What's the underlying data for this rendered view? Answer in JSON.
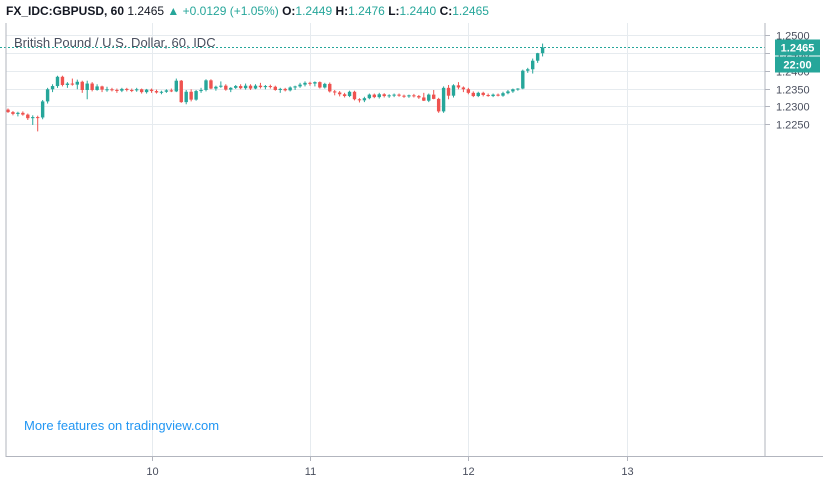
{
  "header": {
    "symbol": "FX_IDC:GBPUSD, 60",
    "last": "1.2465",
    "arrow": "▲",
    "change": "+0.0129 (+1.05%)",
    "o_label": "O:",
    "o": "1.2449",
    "h_label": "H:",
    "h": "1.2476",
    "l_label": "L:",
    "l": "1.2440",
    "c_label": "C:",
    "c": "1.2465"
  },
  "watermark": "More features on tradingview.com",
  "colors": {
    "up": "#26a69a",
    "down": "#ef5350",
    "grid": "#e6ebef",
    "axis": "#b2b5be"
  },
  "chart_data": {
    "type": "candlestick",
    "title": "British Pound / U.S. Dollar, 60, IDC",
    "xlabel": "",
    "ylabel": "",
    "ylim": [
      1.2215,
      1.251
    ],
    "yticks": [
      "1.2500",
      "1.2450",
      "1.2400",
      "1.2350",
      "1.2300",
      "1.2250"
    ],
    "xticks": [
      {
        "label": "10",
        "index": 29
      },
      {
        "label": "11",
        "index": 61
      },
      {
        "label": "12",
        "index": 93
      },
      {
        "label": "13",
        "index": 125
      }
    ],
    "last_price": {
      "value": "1.2465",
      "time": "22:00"
    },
    "candles": [
      [
        1.2291,
        1.2294,
        1.2282,
        1.2284
      ],
      [
        1.2284,
        1.2287,
        1.2275,
        1.2279
      ],
      [
        1.2279,
        1.2285,
        1.2272,
        1.2282
      ],
      [
        1.2282,
        1.2286,
        1.2274,
        1.2277
      ],
      [
        1.2277,
        1.228,
        1.2262,
        1.2267
      ],
      [
        1.2267,
        1.2275,
        1.2248,
        1.227
      ],
      [
        1.227,
        1.2274,
        1.223,
        1.2269
      ],
      [
        1.2269,
        1.2318,
        1.2264,
        1.2314
      ],
      [
        1.2314,
        1.2352,
        1.2308,
        1.2348
      ],
      [
        1.2348,
        1.2362,
        1.234,
        1.2357
      ],
      [
        1.2357,
        1.2386,
        1.2352,
        1.2383
      ],
      [
        1.2383,
        1.2386,
        1.2356,
        1.236
      ],
      [
        1.236,
        1.2368,
        1.2352,
        1.2364
      ],
      [
        1.2364,
        1.2378,
        1.2358,
        1.2361
      ],
      [
        1.2361,
        1.2375,
        1.2348,
        1.2369
      ],
      [
        1.2369,
        1.2372,
        1.2338,
        1.2346
      ],
      [
        1.2346,
        1.2372,
        1.232,
        1.2364
      ],
      [
        1.2364,
        1.2368,
        1.2342,
        1.2346
      ],
      [
        1.2346,
        1.2362,
        1.2344,
        1.2356
      ],
      [
        1.2356,
        1.2358,
        1.234,
        1.2347
      ],
      [
        1.2347,
        1.2355,
        1.2341,
        1.2348
      ],
      [
        1.2348,
        1.2352,
        1.2342,
        1.2346
      ],
      [
        1.2346,
        1.235,
        1.2338,
        1.2344
      ],
      [
        1.2344,
        1.2352,
        1.234,
        1.2349
      ],
      [
        1.2349,
        1.2352,
        1.2342,
        1.2346
      ],
      [
        1.2346,
        1.235,
        1.234,
        1.2345
      ],
      [
        1.2345,
        1.2352,
        1.2341,
        1.2348
      ],
      [
        1.2348,
        1.235,
        1.2336,
        1.234
      ],
      [
        1.234,
        1.2349,
        1.2336,
        1.2347
      ],
      [
        1.2347,
        1.235,
        1.2338,
        1.2343
      ],
      [
        1.2343,
        1.2347,
        1.2336,
        1.2339
      ],
      [
        1.2339,
        1.2344,
        1.2334,
        1.2341
      ],
      [
        1.2341,
        1.2348,
        1.2338,
        1.2345
      ],
      [
        1.2345,
        1.235,
        1.234,
        1.2342
      ],
      [
        1.2342,
        1.2378,
        1.234,
        1.2372
      ],
      [
        1.2372,
        1.2374,
        1.231,
        1.2312
      ],
      [
        1.2312,
        1.2346,
        1.2306,
        1.2341
      ],
      [
        1.2341,
        1.2348,
        1.2314,
        1.2319
      ],
      [
        1.2319,
        1.2346,
        1.2316,
        1.2343
      ],
      [
        1.2343,
        1.2352,
        1.2338,
        1.2346
      ],
      [
        1.2346,
        1.2376,
        1.2342,
        1.2373
      ],
      [
        1.2373,
        1.2376,
        1.2348,
        1.235
      ],
      [
        1.235,
        1.2358,
        1.2344,
        1.2355
      ],
      [
        1.2355,
        1.237,
        1.2352,
        1.2358
      ],
      [
        1.2358,
        1.2362,
        1.2344,
        1.2347
      ],
      [
        1.2347,
        1.2354,
        1.234,
        1.2352
      ],
      [
        1.2352,
        1.236,
        1.2349,
        1.2357
      ],
      [
        1.2357,
        1.2362,
        1.2348,
        1.2351
      ],
      [
        1.2351,
        1.2364,
        1.2347,
        1.2358
      ],
      [
        1.2358,
        1.2362,
        1.2346,
        1.235
      ],
      [
        1.235,
        1.2362,
        1.2348,
        1.2358
      ],
      [
        1.2358,
        1.2366,
        1.235,
        1.2354
      ],
      [
        1.2354,
        1.236,
        1.2348,
        1.2357
      ],
      [
        1.2357,
        1.2361,
        1.235,
        1.2355
      ],
      [
        1.2355,
        1.2358,
        1.2344,
        1.2346
      ],
      [
        1.2346,
        1.2352,
        1.2338,
        1.2349
      ],
      [
        1.2349,
        1.2352,
        1.2342,
        1.2345
      ],
      [
        1.2345,
        1.2356,
        1.2342,
        1.2353
      ],
      [
        1.2353,
        1.2358,
        1.2346,
        1.2356
      ],
      [
        1.2356,
        1.2366,
        1.2352,
        1.2361
      ],
      [
        1.2361,
        1.237,
        1.2356,
        1.2366
      ],
      [
        1.2366,
        1.2369,
        1.2358,
        1.2364
      ],
      [
        1.2364,
        1.237,
        1.2356,
        1.2368
      ],
      [
        1.2368,
        1.237,
        1.235,
        1.2353
      ],
      [
        1.2353,
        1.2366,
        1.235,
        1.2363
      ],
      [
        1.2363,
        1.2367,
        1.2339,
        1.2342
      ],
      [
        1.2342,
        1.2346,
        1.2331,
        1.2339
      ],
      [
        1.2339,
        1.2343,
        1.2328,
        1.2334
      ],
      [
        1.2334,
        1.2338,
        1.2325,
        1.2329
      ],
      [
        1.2329,
        1.2344,
        1.2326,
        1.2341
      ],
      [
        1.2341,
        1.2344,
        1.2317,
        1.232
      ],
      [
        1.232,
        1.2323,
        1.2311,
        1.2317
      ],
      [
        1.2317,
        1.2327,
        1.2312,
        1.2323
      ],
      [
        1.2323,
        1.2336,
        1.232,
        1.2333
      ],
      [
        1.2333,
        1.2336,
        1.2323,
        1.2326
      ],
      [
        1.2326,
        1.2338,
        1.2322,
        1.2334
      ],
      [
        1.2334,
        1.2337,
        1.2325,
        1.2329
      ],
      [
        1.2329,
        1.2334,
        1.2324,
        1.2331
      ],
      [
        1.2331,
        1.2336,
        1.2326,
        1.2333
      ],
      [
        1.2333,
        1.2336,
        1.2327,
        1.233
      ],
      [
        1.233,
        1.2333,
        1.2324,
        1.2328
      ],
      [
        1.2328,
        1.2333,
        1.2324,
        1.2331
      ],
      [
        1.2331,
        1.2335,
        1.2325,
        1.2329
      ],
      [
        1.2329,
        1.2332,
        1.2321,
        1.2325
      ],
      [
        1.2325,
        1.2338,
        1.2315,
        1.2316
      ],
      [
        1.2316,
        1.2336,
        1.2312,
        1.2333
      ],
      [
        1.2333,
        1.2346,
        1.232,
        1.2321
      ],
      [
        1.2321,
        1.2324,
        1.2282,
        1.2286
      ],
      [
        1.2286,
        1.2356,
        1.2282,
        1.2352
      ],
      [
        1.2352,
        1.236,
        1.232,
        1.233
      ],
      [
        1.233,
        1.2362,
        1.2325,
        1.2359
      ],
      [
        1.2359,
        1.2368,
        1.2348,
        1.2353
      ],
      [
        1.2353,
        1.2356,
        1.234,
        1.2348
      ],
      [
        1.2348,
        1.2352,
        1.2334,
        1.2338
      ],
      [
        1.2338,
        1.2342,
        1.2326,
        1.2329
      ],
      [
        1.2329,
        1.2341,
        1.2326,
        1.2338
      ],
      [
        1.2338,
        1.2341,
        1.2328,
        1.2332
      ],
      [
        1.2332,
        1.2336,
        1.2327,
        1.2329
      ],
      [
        1.2329,
        1.2336,
        1.2326,
        1.2333
      ],
      [
        1.2333,
        1.2336,
        1.2328,
        1.233
      ],
      [
        1.233,
        1.2341,
        1.2327,
        1.2337
      ],
      [
        1.2337,
        1.2346,
        1.2334,
        1.2342
      ],
      [
        1.2342,
        1.235,
        1.2338,
        1.2348
      ],
      [
        1.2348,
        1.2351,
        1.2344,
        1.235
      ],
      [
        1.235,
        1.2403,
        1.2348,
        1.24
      ],
      [
        1.24,
        1.2408,
        1.2394,
        1.2404
      ],
      [
        1.2404,
        1.2434,
        1.2392,
        1.2428
      ],
      [
        1.2428,
        1.245,
        1.2422,
        1.2449
      ],
      [
        1.2449,
        1.2476,
        1.244,
        1.2465
      ]
    ]
  }
}
